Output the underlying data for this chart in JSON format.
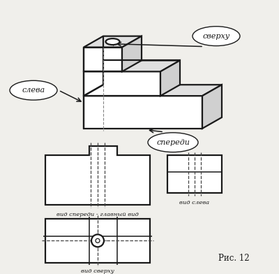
{
  "bg_color": "#f0efeb",
  "line_color": "#1a1a1a",
  "dashed_color": "#444444",
  "title": "Рис. 12",
  "label_front": "вид спереди - главный вид",
  "label_left": "вид слева",
  "label_top": "вид сверху",
  "label_sverhu": "сверху",
  "label_sleva": "слева",
  "label_spereди": "спереди",
  "figsize": [
    4.0,
    3.92
  ],
  "dpi": 100
}
